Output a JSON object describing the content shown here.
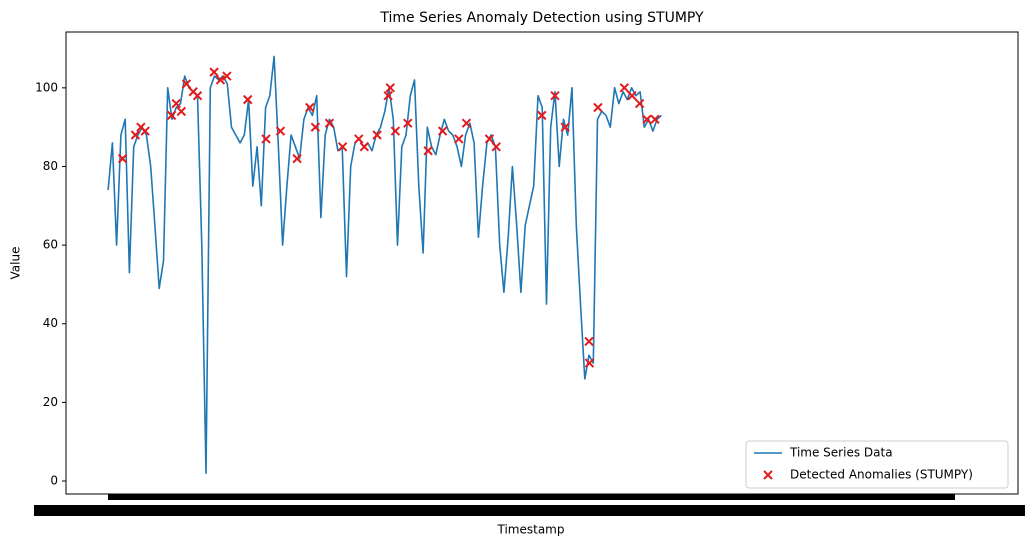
{
  "chart_data": {
    "type": "line",
    "title": "Time Series Anomaly Detection using STUMPY",
    "x_label": "Timestamp",
    "y_label": "Value",
    "xlim": [
      -9.9,
      213.8
    ],
    "ylim": [
      -3.3,
      114.2
    ],
    "yticks": [
      0,
      20,
      40,
      60,
      80,
      100
    ],
    "legend": "lower right",
    "series": [
      {
        "name": "Time Series Data",
        "type": "line",
        "color": "#1f77b4",
        "x": [
          0,
          1,
          2,
          3,
          4,
          5,
          6,
          7,
          8,
          9,
          10,
          11,
          12,
          13,
          14,
          15,
          16,
          17,
          18,
          19,
          20,
          21,
          22,
          23,
          24,
          25,
          26,
          27,
          28,
          29,
          30,
          31,
          32,
          33,
          34,
          35,
          36,
          37,
          38,
          39,
          40,
          41,
          42,
          43,
          44,
          45,
          46,
          47,
          48,
          49,
          50,
          51,
          52,
          53,
          54,
          55,
          56,
          57,
          58,
          59,
          60,
          61,
          62,
          63,
          64,
          65,
          66,
          67,
          68,
          69,
          70,
          71,
          72,
          73,
          74,
          75,
          76,
          77,
          78,
          79,
          80,
          81,
          82,
          83,
          84,
          85,
          86,
          87,
          88,
          89,
          90,
          91,
          92,
          93,
          94,
          95,
          96,
          97,
          98,
          99,
          100,
          101,
          102,
          103,
          104,
          105,
          106,
          107,
          108,
          109,
          110,
          111,
          112,
          113,
          114,
          115,
          116,
          117,
          118,
          119,
          120,
          121,
          122,
          123,
          124,
          125,
          126,
          127,
          128,
          129,
          130
        ],
        "values": [
          74,
          86,
          60,
          88,
          92,
          53,
          85,
          88,
          90,
          88,
          80,
          65,
          49,
          56,
          100,
          92,
          95,
          96,
          103,
          100,
          99,
          98,
          60,
          2,
          100,
          103,
          102,
          103,
          101,
          90,
          88,
          86,
          88,
          97,
          75,
          85,
          70,
          95,
          98,
          108,
          85,
          60,
          75,
          88,
          85,
          82,
          92,
          95,
          93,
          98,
          67,
          88,
          92,
          90,
          84,
          85,
          52,
          80,
          86,
          87,
          85,
          86,
          84,
          88,
          90,
          94,
          100,
          92,
          60,
          85,
          88,
          98,
          102,
          75,
          58,
          90,
          85,
          83,
          88,
          92,
          89,
          88,
          85,
          80,
          88,
          91,
          86,
          62,
          75,
          86,
          88,
          85,
          60,
          48,
          62,
          80,
          65,
          48,
          65,
          70,
          75,
          98,
          95,
          45,
          90,
          99,
          80,
          92,
          88,
          100,
          65,
          45,
          26,
          32,
          30,
          92,
          94,
          93,
          90,
          100,
          96,
          99,
          97,
          100,
          98,
          99,
          90,
          92,
          89,
          92,
          93
        ]
      },
      {
        "name": "Detected Anomalies (STUMPY)",
        "type": "scatter",
        "color": "#e41a1c",
        "x": [
          3.4,
          6.4,
          7.7,
          8.7,
          14.9,
          16,
          17.2,
          18.4,
          20,
          21,
          24.9,
          26.4,
          27.9,
          32.8,
          37.1,
          40.5,
          44.4,
          47.4,
          48.7,
          52,
          55.1,
          58.9,
          60.2,
          63.2,
          65.8,
          66.3,
          67.5,
          70.4,
          75.2,
          78.6,
          82.4,
          84.2,
          89.6,
          91.2,
          101.9,
          105,
          107.4,
          113,
          113.1,
          115.1,
          121.3,
          123.1,
          124.9,
          126.6,
          128.5
        ],
        "values": [
          82,
          88,
          90,
          89,
          93,
          96,
          94,
          101,
          99,
          98,
          104,
          102,
          103,
          97,
          87,
          89,
          82,
          95,
          90,
          91,
          85,
          87,
          85,
          88,
          98,
          100,
          89,
          91,
          84,
          89,
          87,
          91,
          87,
          85,
          93,
          98,
          90,
          35.5,
          30,
          95,
          100,
          98,
          96,
          92,
          92
        ]
      }
    ]
  }
}
